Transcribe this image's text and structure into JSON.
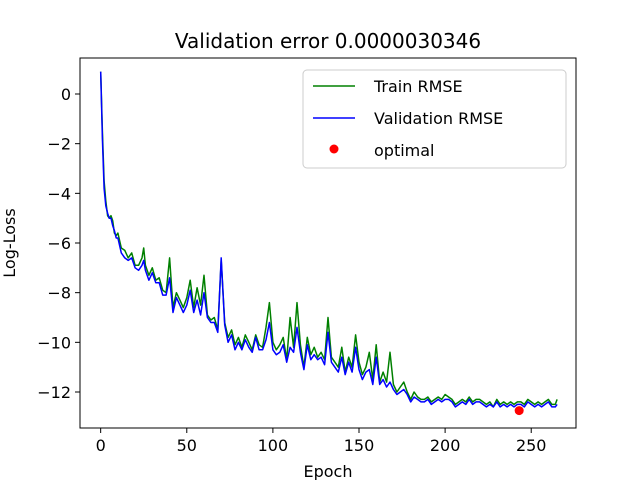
{
  "chart_data": {
    "type": "line",
    "title": "Validation error 0.0000030346",
    "xlabel": "Epoch",
    "ylabel": "Log-Loss",
    "xlim": [
      -12,
      276
    ],
    "ylim": [
      -13.45,
      1.45
    ],
    "xticks": [
      0,
      50,
      100,
      150,
      200,
      250
    ],
    "yticks": [
      0,
      -2,
      -4,
      -6,
      -8,
      -10,
      -12
    ],
    "ytick_labels": [
      "0",
      "−2",
      "−4",
      "−6",
      "−8",
      "−10",
      "−12"
    ],
    "grid": false,
    "legend_position": "top-right",
    "series": [
      {
        "name": "Train RMSE",
        "color": "#008000",
        "x": [
          0,
          1,
          2,
          3,
          4,
          5,
          6,
          7,
          8,
          9,
          10,
          12,
          14,
          16,
          18,
          20,
          22,
          24,
          25,
          26,
          28,
          30,
          32,
          34,
          36,
          38,
          40,
          42,
          44,
          46,
          48,
          50,
          52,
          54,
          56,
          58,
          60,
          62,
          64,
          66,
          68,
          70,
          72,
          74,
          76,
          78,
          80,
          82,
          84,
          86,
          88,
          90,
          92,
          94,
          96,
          98,
          100,
          102,
          104,
          106,
          108,
          110,
          112,
          114,
          116,
          118,
          120,
          122,
          124,
          126,
          128,
          130,
          132,
          134,
          136,
          138,
          140,
          142,
          144,
          146,
          148,
          150,
          152,
          154,
          156,
          158,
          160,
          162,
          164,
          166,
          168,
          170,
          172,
          174,
          176,
          178,
          180,
          182,
          184,
          186,
          188,
          190,
          192,
          194,
          196,
          198,
          200,
          202,
          204,
          206,
          208,
          210,
          212,
          214,
          216,
          218,
          220,
          222,
          224,
          226,
          228,
          230,
          232,
          234,
          236,
          238,
          240,
          242,
          244,
          246,
          248,
          250,
          252,
          254,
          256,
          258,
          260,
          262,
          264,
          265
        ],
        "values": [
          0.9,
          -1.5,
          -3.5,
          -4.3,
          -4.9,
          -5.0,
          -4.9,
          -5.1,
          -5.6,
          -5.7,
          -5.6,
          -6.2,
          -6.3,
          -6.6,
          -6.4,
          -6.9,
          -6.9,
          -6.6,
          -6.2,
          -6.9,
          -7.3,
          -7.0,
          -7.5,
          -7.4,
          -7.9,
          -8.0,
          -6.6,
          -8.6,
          -8.0,
          -8.3,
          -8.6,
          -8.2,
          -7.5,
          -8.6,
          -7.8,
          -8.5,
          -7.3,
          -8.9,
          -9.1,
          -9.0,
          -9.5,
          -6.7,
          -9.2,
          -9.8,
          -9.5,
          -10.1,
          -9.8,
          -10.2,
          -9.7,
          -10.0,
          -10.3,
          -9.7,
          -10.1,
          -10.2,
          -9.4,
          -8.4,
          -10.0,
          -10.3,
          -10.1,
          -9.8,
          -10.7,
          -9.0,
          -10.2,
          -8.4,
          -10.1,
          -11.0,
          -9.8,
          -10.5,
          -10.2,
          -10.6,
          -10.4,
          -10.7,
          -9.0,
          -10.6,
          -10.8,
          -11.0,
          -10.2,
          -11.2,
          -10.6,
          -11.0,
          -9.7,
          -10.8,
          -11.3,
          -11.0,
          -10.4,
          -11.5,
          -10.1,
          -11.6,
          -11.2,
          -11.6,
          -10.4,
          -11.7,
          -12.0,
          -11.8,
          -11.6,
          -12.0,
          -12.3,
          -12.0,
          -12.2,
          -12.3,
          -12.3,
          -12.2,
          -12.4,
          -12.3,
          -12.2,
          -12.3,
          -12.1,
          -12.2,
          -12.3,
          -12.5,
          -12.4,
          -12.3,
          -12.4,
          -12.2,
          -12.4,
          -12.3,
          -12.3,
          -12.4,
          -12.5,
          -12.4,
          -12.6,
          -12.3,
          -12.5,
          -12.4,
          -12.5,
          -12.4,
          -12.5,
          -12.4,
          -12.4,
          -12.5,
          -12.3,
          -12.4,
          -12.5,
          -12.4,
          -12.5,
          -12.4,
          -12.3,
          -12.5,
          -12.5,
          -12.3
        ]
      },
      {
        "name": "Validation RMSE",
        "color": "#0000ff",
        "x": [
          0,
          1,
          2,
          3,
          4,
          5,
          6,
          7,
          8,
          9,
          10,
          12,
          14,
          16,
          18,
          20,
          22,
          24,
          25,
          26,
          28,
          30,
          32,
          34,
          36,
          38,
          40,
          42,
          44,
          46,
          48,
          50,
          52,
          54,
          56,
          58,
          60,
          62,
          64,
          66,
          68,
          70,
          72,
          74,
          76,
          78,
          80,
          82,
          84,
          86,
          88,
          90,
          92,
          94,
          96,
          98,
          100,
          102,
          104,
          106,
          108,
          110,
          112,
          114,
          116,
          118,
          120,
          122,
          124,
          126,
          128,
          130,
          132,
          134,
          136,
          138,
          140,
          142,
          144,
          146,
          148,
          150,
          152,
          154,
          156,
          158,
          160,
          162,
          164,
          166,
          168,
          170,
          172,
          174,
          176,
          178,
          180,
          182,
          184,
          186,
          188,
          190,
          192,
          194,
          196,
          198,
          200,
          202,
          204,
          206,
          208,
          210,
          212,
          214,
          216,
          218,
          220,
          222,
          224,
          226,
          228,
          230,
          232,
          234,
          236,
          238,
          240,
          242,
          244,
          246,
          248,
          250,
          252,
          254,
          256,
          258,
          260,
          262,
          264,
          265
        ],
        "values": [
          0.9,
          -1.8,
          -3.8,
          -4.5,
          -4.8,
          -5.0,
          -5.0,
          -5.3,
          -5.5,
          -5.8,
          -5.8,
          -6.4,
          -6.6,
          -6.7,
          -6.6,
          -7.0,
          -7.1,
          -6.9,
          -6.7,
          -7.1,
          -7.5,
          -7.2,
          -7.6,
          -7.6,
          -8.1,
          -8.1,
          -7.4,
          -8.8,
          -8.2,
          -8.5,
          -8.8,
          -8.5,
          -7.9,
          -8.8,
          -8.3,
          -8.9,
          -8.0,
          -9.0,
          -9.2,
          -9.2,
          -9.6,
          -6.6,
          -9.3,
          -10.0,
          -9.7,
          -10.3,
          -10.0,
          -10.3,
          -9.9,
          -10.2,
          -10.4,
          -9.8,
          -10.3,
          -10.3,
          -9.9,
          -9.2,
          -10.3,
          -10.5,
          -10.4,
          -10.1,
          -10.8,
          -10.2,
          -10.4,
          -9.4,
          -10.4,
          -11.1,
          -10.1,
          -10.7,
          -10.5,
          -10.7,
          -10.6,
          -10.9,
          -9.6,
          -10.8,
          -11.0,
          -11.2,
          -10.6,
          -11.3,
          -10.8,
          -11.2,
          -10.2,
          -11.1,
          -11.5,
          -11.2,
          -11.1,
          -11.7,
          -10.6,
          -11.7,
          -11.5,
          -11.8,
          -11.6,
          -11.9,
          -12.1,
          -12.0,
          -11.9,
          -12.1,
          -12.4,
          -12.2,
          -12.3,
          -12.4,
          -12.4,
          -12.3,
          -12.5,
          -12.4,
          -12.3,
          -12.4,
          -12.3,
          -12.3,
          -12.4,
          -12.6,
          -12.5,
          -12.4,
          -12.5,
          -12.3,
          -12.5,
          -12.4,
          -12.4,
          -12.5,
          -12.6,
          -12.5,
          -12.6,
          -12.4,
          -12.6,
          -12.5,
          -12.6,
          -12.5,
          -12.6,
          -12.5,
          -12.5,
          -12.6,
          -12.4,
          -12.5,
          -12.6,
          -12.5,
          -12.6,
          -12.5,
          -12.4,
          -12.6,
          -12.6,
          -12.5
        ]
      }
    ],
    "optimal": {
      "name": "optimal",
      "color": "#ff0000",
      "x": 243,
      "y": -12.75
    }
  }
}
